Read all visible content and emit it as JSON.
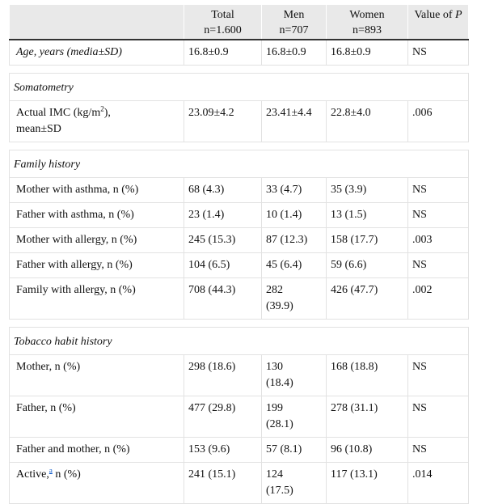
{
  "header": {
    "col0": "",
    "total_label": "Total",
    "total_n": "n=1.600",
    "men_label": "Men",
    "men_n": "n=707",
    "women_label": "Women",
    "women_n": "n=893",
    "p_prefix": "Value of ",
    "p_italic": "P"
  },
  "age_row": {
    "label": "Age, years (media±SD)",
    "total": "16.8±0.9",
    "men": "16.8±0.9",
    "women": "16.8±0.9",
    "p": "NS"
  },
  "somatometry": {
    "title": "Somatometry",
    "imc": {
      "label_pre": "Actual IMC (kg/m",
      "label_sup": "2",
      "label_post": "),",
      "label_line2": "mean±SD",
      "total": "23.09±4.2",
      "men": "23.41±4.4",
      "women": "22.8±4.0",
      "p": ".006"
    }
  },
  "family": {
    "title": "Family history",
    "rows": [
      {
        "label": "Mother with asthma, n (%)",
        "total": "68 (4.3)",
        "men": "33 (4.7)",
        "women": "35 (3.9)",
        "p": "NS"
      },
      {
        "label": "Father with asthma, n (%)",
        "total": "23 (1.4)",
        "men": "10 (1.4)",
        "women": "13 (1.5)",
        "p": "NS"
      },
      {
        "label": "Mother with allergy, n (%)",
        "total": "245 (15.3)",
        "men": "87 (12.3)",
        "women": "158 (17.7)",
        "p": ".003"
      },
      {
        "label": "Father with allergy, n (%)",
        "total": "104 (6.5)",
        "men": "45 (6.4)",
        "women": "59 (6.6)",
        "p": "NS"
      },
      {
        "label": "Family with allergy, n (%)",
        "total": "708 (44.3)",
        "men1": "282",
        "men2": "(39.9)",
        "women": "426 (47.7)",
        "p": ".002"
      }
    ]
  },
  "tobacco": {
    "title": "Tobacco habit history",
    "rows": [
      {
        "label": "Mother, n (%)",
        "total": "298 (18.6)",
        "men1": "130",
        "men2": "(18.4)",
        "women": "168 (18.8)",
        "p": "NS"
      },
      {
        "label": "Father, n (%)",
        "total": "477 (29.8)",
        "men1": "199",
        "men2": "(28.1)",
        "women": "278 (31.1)",
        "p": "NS"
      },
      {
        "label": "Father and mother, n (%)",
        "total": "153 (9.6)",
        "men": "57 (8.1)",
        "women": "96 (10.8)",
        "p": "NS"
      }
    ],
    "active": {
      "label_pre": "Active,",
      "footnote": "a",
      "label_post": " n (%)",
      "total": "241 (15.1)",
      "men1": "124",
      "men2": "(17.5)",
      "women": "117 (13.1)",
      "p": ".014"
    }
  }
}
